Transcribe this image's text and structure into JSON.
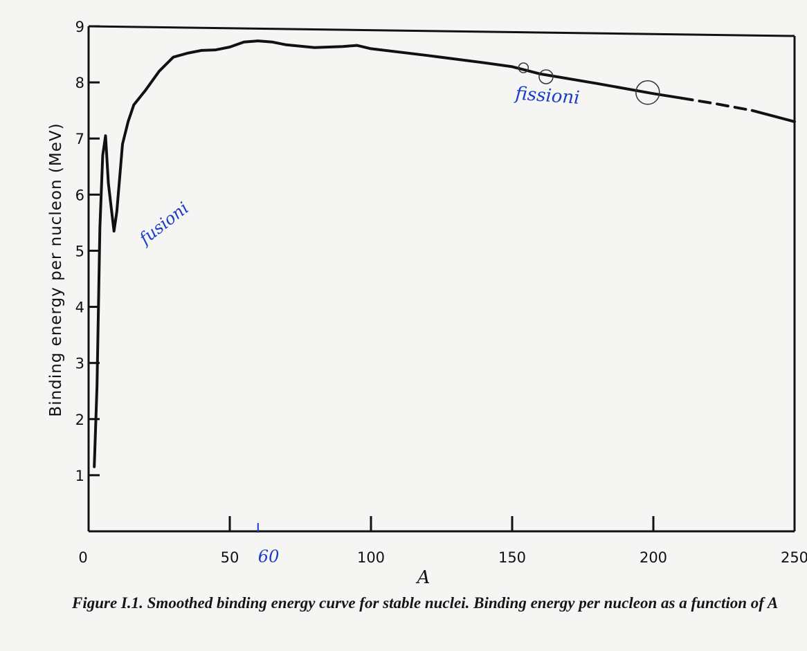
{
  "chart_data": {
    "type": "line",
    "title": "",
    "xlabel": "A",
    "ylabel": "Binding energy per nucleon (MeV)",
    "xlim": [
      0,
      250
    ],
    "ylim": [
      0,
      9
    ],
    "x_ticks": [
      0,
      50,
      100,
      150,
      200,
      250
    ],
    "y_ticks": [
      1,
      2,
      3,
      4,
      5,
      6,
      7,
      8,
      9
    ],
    "grid": false,
    "legend": "none",
    "line_color": "#111111",
    "series": [
      {
        "style": "solid",
        "x": [
          2,
          3,
          4,
          5,
          6,
          7,
          9,
          10,
          12,
          14,
          16,
          20,
          25,
          30,
          35,
          40,
          45,
          50,
          55,
          60,
          65,
          70,
          80,
          90,
          95,
          100,
          120,
          140,
          150,
          160,
          180,
          200,
          210
        ],
        "y": [
          1.15,
          2.6,
          5.4,
          6.7,
          7.05,
          6.2,
          5.35,
          5.7,
          6.9,
          7.3,
          7.6,
          7.85,
          8.2,
          8.45,
          8.52,
          8.57,
          8.58,
          8.63,
          8.72,
          8.74,
          8.72,
          8.67,
          8.62,
          8.64,
          8.66,
          8.6,
          8.48,
          8.35,
          8.28,
          8.15,
          7.98,
          7.8,
          7.72
        ]
      },
      {
        "style": "dashed",
        "x": [
          210,
          222,
          235
        ],
        "y": [
          7.72,
          7.62,
          7.5
        ]
      },
      {
        "style": "solid",
        "x": [
          235,
          250
        ],
        "y": [
          7.5,
          7.3
        ]
      }
    ],
    "annotations": [
      {
        "text": "fusioni",
        "x": 20,
        "y": 5.1
      },
      {
        "text": "fissioni",
        "x": 151,
        "y": 7.7
      },
      {
        "text": "60",
        "x": 60,
        "y": -0.55
      }
    ],
    "annotation_color": "#1a3cc8"
  },
  "caption": {
    "text": "Figure I.1. Smoothed binding energy curve for stable nuclei. Binding energy per nucleon as a function of A"
  }
}
